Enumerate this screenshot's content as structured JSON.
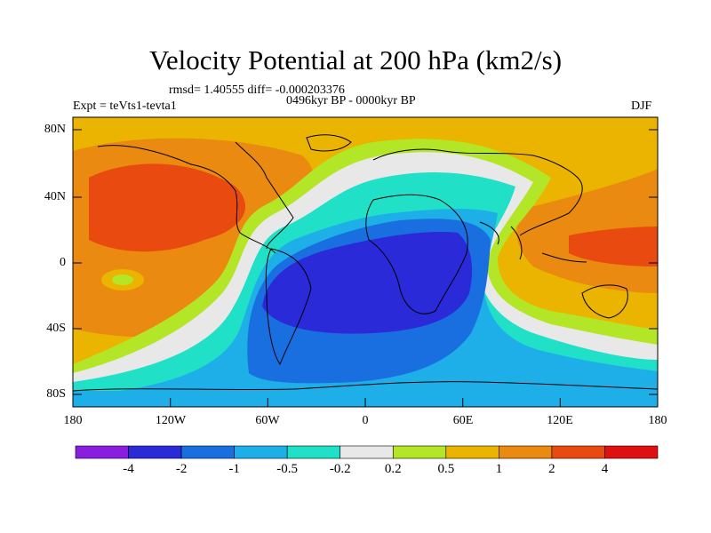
{
  "title": "Velocity Potential at 200 hPa (km2/s)",
  "stats_text": "rmsd= 1.40555 diff= -0.000203376",
  "period_text": "0496kyr BP - 0000kyr BP",
  "experiment_text": "Expt = teVts1-tevta1",
  "season": "DJF",
  "lat_ticks": [
    "80N",
    "40N",
    "0",
    "40S",
    "80S"
  ],
  "lon_ticks": [
    "180",
    "120W",
    "60W",
    "0",
    "60E",
    "120E",
    "180"
  ],
  "colorbar": {
    "labels": [
      "-4",
      "-2",
      "-1",
      "-0.5",
      "-0.2",
      "0.2",
      "0.5",
      "1",
      "2",
      "4"
    ],
    "colors": [
      "#8a1ee0",
      "#2a2ad8",
      "#1a6fe0",
      "#1eaee8",
      "#20e0c8",
      "#e8e8e8",
      "#b4e628",
      "#eab400",
      "#ea8a10",
      "#e84a10",
      "#e01010"
    ]
  }
}
